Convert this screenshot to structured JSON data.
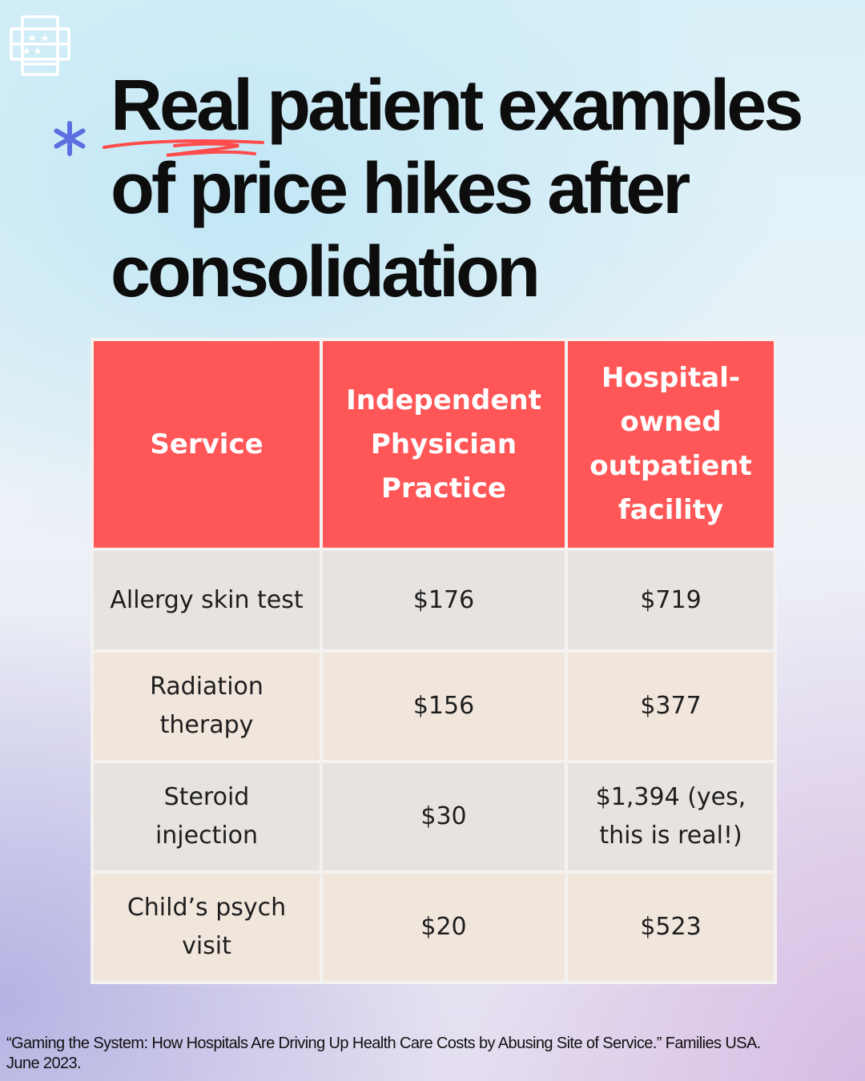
{
  "header": {
    "logo_icon": "flag-document-icon",
    "decoration_icon": "asterisk-icon",
    "accent_color": "#ff5757",
    "title_lines": [
      "Real patient examples",
      "of price hikes after",
      "consolidation"
    ]
  },
  "table": {
    "header_color": "#ff5757",
    "columns": [
      {
        "label_lines": [
          "Service"
        ]
      },
      {
        "label_lines": [
          "Independent",
          "Physician",
          "Practice"
        ]
      },
      {
        "label_lines": [
          "Hospital-",
          "owned",
          "outpatient",
          "facility"
        ]
      }
    ],
    "rows": [
      {
        "service_lines": [
          "Allergy skin test"
        ],
        "independent": "$176",
        "hospital_lines": [
          "$719"
        ]
      },
      {
        "service_lines": [
          "Radiation",
          "therapy"
        ],
        "independent": "$156",
        "hospital_lines": [
          "$377"
        ]
      },
      {
        "service_lines": [
          "Steroid",
          "injection"
        ],
        "independent": "$30",
        "hospital_lines": [
          "$1,394 (yes,",
          "this is real!)"
        ]
      },
      {
        "service_lines": [
          "Child’s psych",
          "visit"
        ],
        "independent": "$20",
        "hospital_lines": [
          "$523"
        ]
      }
    ]
  },
  "footer": {
    "citation_lines": [
      "“Gaming the System: How Hospitals Are Driving Up Health Care Costs by Abusing Site of Service.” Families USA.",
      "June 2023."
    ]
  }
}
